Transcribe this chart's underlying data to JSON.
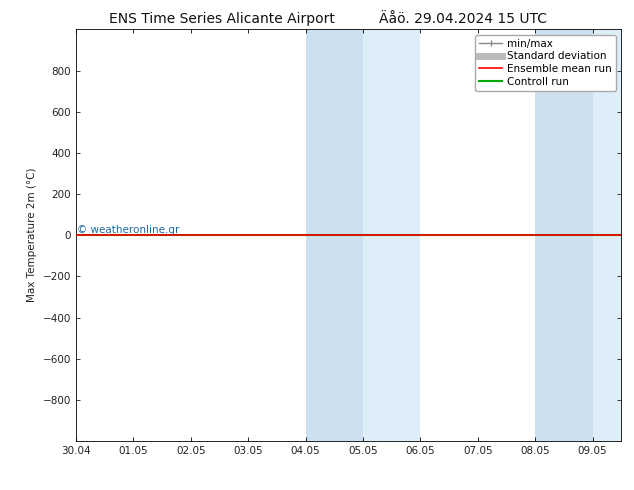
{
  "title": "ENS Time Series Alicante Airport",
  "title2": "Äåö. 29.04.2024 15 UTC",
  "ylabel": "Max Temperature 2m (°C)",
  "ylim_top": -1000,
  "ylim_bottom": 1000,
  "yticks": [
    -800,
    -600,
    -400,
    -200,
    0,
    200,
    400,
    600,
    800
  ],
  "x_labels": [
    "30.04",
    "01.05",
    "02.05",
    "03.05",
    "04.05",
    "05.05",
    "06.05",
    "07.05",
    "08.05",
    "09.05"
  ],
  "background_color": "#ffffff",
  "plot_bg_color": "#ffffff",
  "shaded_regions": [
    {
      "xstart": 4.0,
      "xend": 5.0,
      "color": "#cce0f0"
    },
    {
      "xstart": 5.0,
      "xend": 6.0,
      "color": "#ddeef8"
    },
    {
      "xstart": 8.0,
      "xend": 9.0,
      "color": "#cce0f0"
    },
    {
      "xstart": 9.0,
      "xend": 9.5,
      "color": "#ddeef8"
    }
  ],
  "green_line_y": 0,
  "red_line_y": 0,
  "watermark": "© weatheronline.gr",
  "legend_items": [
    {
      "label": "min/max",
      "color": "#888888",
      "lw": 1.0
    },
    {
      "label": "Standard deviation",
      "color": "#bbbbbb",
      "lw": 5
    },
    {
      "label": "Ensemble mean run",
      "color": "#ff0000",
      "lw": 1.2
    },
    {
      "label": "Controll run",
      "color": "#00aa00",
      "lw": 1.5
    }
  ],
  "font_size_title": 10,
  "font_size_axis": 7.5,
  "font_size_legend": 7.5,
  "tick_label_color": "#222222",
  "axis_color": "#444444",
  "x_min": 0,
  "x_max": 9.5
}
